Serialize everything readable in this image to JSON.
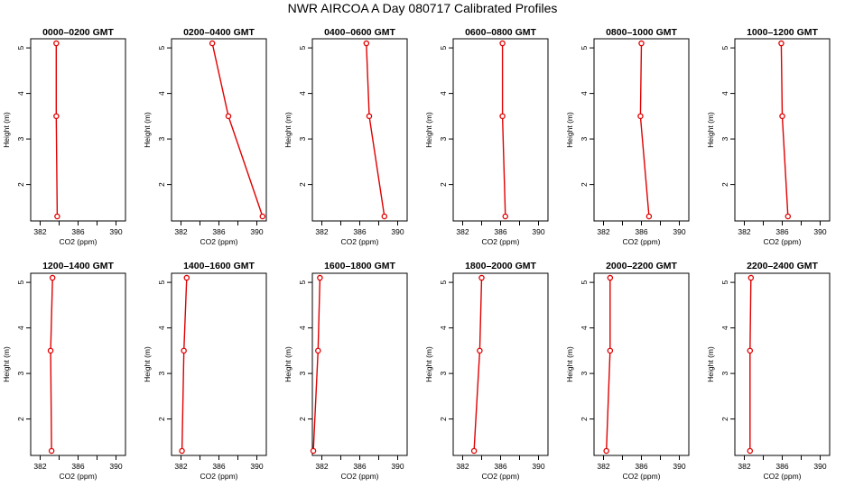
{
  "title": "NWR AIRCOA A  Day 080717  Calibrated Profiles",
  "chart_data": [
    {
      "type": "line",
      "title": "0000–0200 GMT",
      "xlabel": "CO2 (ppm)",
      "ylabel": "Height (m)",
      "xlim": [
        381,
        391
      ],
      "ylim": [
        1.2,
        5.2
      ],
      "xticks": [
        382,
        384,
        386,
        388,
        390
      ],
      "xtick_labels": [
        "382",
        "386",
        "390"
      ],
      "yticks": [
        2,
        3,
        4,
        5
      ],
      "series": [
        {
          "x": [
            383.7,
            383.7,
            383.8
          ],
          "y": [
            5.1,
            3.5,
            1.3
          ]
        }
      ]
    },
    {
      "type": "line",
      "title": "0200–0400 GMT",
      "xlabel": "CO2 (ppm)",
      "ylabel": "Height (m)",
      "xlim": [
        381,
        391
      ],
      "ylim": [
        1.2,
        5.2
      ],
      "xticks": [
        382,
        384,
        386,
        388,
        390
      ],
      "xtick_labels": [
        "382",
        "386",
        "390"
      ],
      "yticks": [
        2,
        3,
        4,
        5
      ],
      "series": [
        {
          "x": [
            385.3,
            387.0,
            390.6
          ],
          "y": [
            5.1,
            3.5,
            1.3
          ]
        }
      ]
    },
    {
      "type": "line",
      "title": "0400–0600 GMT",
      "xlabel": "CO2 (ppm)",
      "ylabel": "Height (m)",
      "xlim": [
        381,
        391
      ],
      "ylim": [
        1.2,
        5.2
      ],
      "xticks": [
        382,
        384,
        386,
        388,
        390
      ],
      "xtick_labels": [
        "382",
        "386",
        "390"
      ],
      "yticks": [
        2,
        3,
        4,
        5
      ],
      "series": [
        {
          "x": [
            386.7,
            387.0,
            388.6
          ],
          "y": [
            5.1,
            3.5,
            1.3
          ]
        }
      ]
    },
    {
      "type": "line",
      "title": "0600–0800 GMT",
      "xlabel": "CO2 (ppm)",
      "ylabel": "Height (m)",
      "xlim": [
        381,
        391
      ],
      "ylim": [
        1.2,
        5.2
      ],
      "xticks": [
        382,
        384,
        386,
        388,
        390
      ],
      "xtick_labels": [
        "382",
        "386",
        "390"
      ],
      "yticks": [
        2,
        3,
        4,
        5
      ],
      "series": [
        {
          "x": [
            386.2,
            386.2,
            386.5
          ],
          "y": [
            5.1,
            3.5,
            1.3
          ]
        }
      ]
    },
    {
      "type": "line",
      "title": "0800–1000 GMT",
      "xlabel": "CO2 (ppm)",
      "ylabel": "Height (m)",
      "xlim": [
        381,
        391
      ],
      "ylim": [
        1.2,
        5.2
      ],
      "xticks": [
        382,
        384,
        386,
        388,
        390
      ],
      "xtick_labels": [
        "382",
        "386",
        "390"
      ],
      "yticks": [
        2,
        3,
        4,
        5
      ],
      "series": [
        {
          "x": [
            386.0,
            385.9,
            386.8
          ],
          "y": [
            5.1,
            3.5,
            1.3
          ]
        }
      ]
    },
    {
      "type": "line",
      "title": "1000–1200 GMT",
      "xlabel": "CO2 (ppm)",
      "ylabel": "Height (m)",
      "xlim": [
        381,
        391
      ],
      "ylim": [
        1.2,
        5.2
      ],
      "xticks": [
        382,
        384,
        386,
        388,
        390
      ],
      "xtick_labels": [
        "382",
        "386",
        "390"
      ],
      "yticks": [
        2,
        3,
        4,
        5
      ],
      "series": [
        {
          "x": [
            385.9,
            386.0,
            386.6
          ],
          "y": [
            5.1,
            3.5,
            1.3
          ]
        }
      ]
    },
    {
      "type": "line",
      "title": "1200–1400 GMT",
      "xlabel": "CO2 (ppm)",
      "ylabel": "Height (m)",
      "xlim": [
        381,
        391
      ],
      "ylim": [
        1.2,
        5.2
      ],
      "xticks": [
        382,
        384,
        386,
        388,
        390
      ],
      "xtick_labels": [
        "382",
        "386",
        "390"
      ],
      "yticks": [
        2,
        3,
        4,
        5
      ],
      "series": [
        {
          "x": [
            383.3,
            383.1,
            383.2
          ],
          "y": [
            5.1,
            3.5,
            1.3
          ]
        }
      ]
    },
    {
      "type": "line",
      "title": "1400–1600 GMT",
      "xlabel": "CO2 (ppm)",
      "ylabel": "Height (m)",
      "xlim": [
        381,
        391
      ],
      "ylim": [
        1.2,
        5.2
      ],
      "xticks": [
        382,
        384,
        386,
        388,
        390
      ],
      "xtick_labels": [
        "382",
        "386",
        "390"
      ],
      "yticks": [
        2,
        3,
        4,
        5
      ],
      "series": [
        {
          "x": [
            382.6,
            382.3,
            382.1
          ],
          "y": [
            5.1,
            3.5,
            1.3
          ]
        }
      ]
    },
    {
      "type": "line",
      "title": "1600–1800 GMT",
      "xlabel": "CO2 (ppm)",
      "ylabel": "Height (m)",
      "xlim": [
        381,
        391
      ],
      "ylim": [
        1.2,
        5.2
      ],
      "xticks": [
        382,
        384,
        386,
        388,
        390
      ],
      "xtick_labels": [
        "382",
        "386",
        "390"
      ],
      "yticks": [
        2,
        3,
        4,
        5
      ],
      "series": [
        {
          "x": [
            381.8,
            381.6,
            381.1
          ],
          "y": [
            5.1,
            3.5,
            1.3
          ]
        }
      ]
    },
    {
      "type": "line",
      "title": "1800–2000 GMT",
      "xlabel": "CO2 (ppm)",
      "ylabel": "Height (m)",
      "xlim": [
        381,
        391
      ],
      "ylim": [
        1.2,
        5.2
      ],
      "xticks": [
        382,
        384,
        386,
        388,
        390
      ],
      "xtick_labels": [
        "382",
        "386",
        "390"
      ],
      "yticks": [
        2,
        3,
        4,
        5
      ],
      "series": [
        {
          "x": [
            384.0,
            383.8,
            383.2
          ],
          "y": [
            5.1,
            3.5,
            1.3
          ]
        }
      ]
    },
    {
      "type": "line",
      "title": "2000–2200 GMT",
      "xlabel": "CO2 (ppm)",
      "ylabel": "Height (m)",
      "xlim": [
        381,
        391
      ],
      "ylim": [
        1.2,
        5.2
      ],
      "xticks": [
        382,
        384,
        386,
        388,
        390
      ],
      "xtick_labels": [
        "382",
        "386",
        "390"
      ],
      "yticks": [
        2,
        3,
        4,
        5
      ],
      "series": [
        {
          "x": [
            382.7,
            382.7,
            382.3
          ],
          "y": [
            5.1,
            3.5,
            1.3
          ]
        }
      ]
    },
    {
      "type": "line",
      "title": "2200–2400 GMT",
      "xlabel": "CO2 (ppm)",
      "ylabel": "Height (m)",
      "xlim": [
        381,
        391
      ],
      "ylim": [
        1.2,
        5.2
      ],
      "xticks": [
        382,
        384,
        386,
        388,
        390
      ],
      "xtick_labels": [
        "382",
        "386",
        "390"
      ],
      "yticks": [
        2,
        3,
        4,
        5
      ],
      "series": [
        {
          "x": [
            382.7,
            382.6,
            382.6
          ],
          "y": [
            5.1,
            3.5,
            1.3
          ]
        }
      ]
    }
  ],
  "colors": {
    "series": "#e00000",
    "axes": "#000000",
    "background": "#ffffff"
  }
}
